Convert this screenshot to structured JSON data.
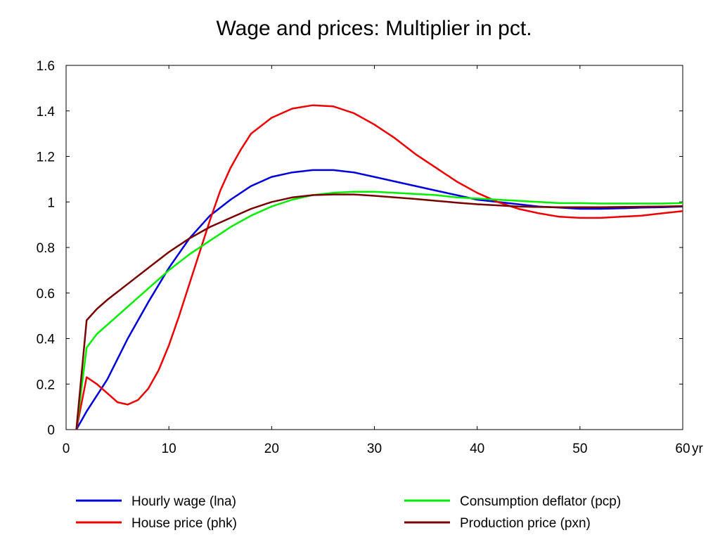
{
  "chart_data": {
    "type": "line",
    "title": "Wage and prices: Multiplier in pct.",
    "xlabel": "",
    "ylabel": "",
    "x_unit_label": "yr",
    "xlim": [
      0,
      60
    ],
    "ylim": [
      0,
      1.6
    ],
    "x_ticks": [
      0,
      10,
      20,
      30,
      40,
      50,
      60
    ],
    "x_tick_labels": [
      "0",
      "10",
      "20",
      "30",
      "40",
      "50",
      "60"
    ],
    "y_ticks": [
      0,
      0.2,
      0.4,
      0.6,
      0.8,
      1,
      1.2,
      1.4,
      1.6
    ],
    "y_tick_labels": [
      "0",
      "0.2",
      "0.4",
      "0.6",
      "0.8",
      "1",
      "1.2",
      "1.4",
      "1.6"
    ],
    "grid": false,
    "legend_position": "bottom",
    "series": [
      {
        "name": "Hourly wage (lna)",
        "color": "#0000dd",
        "points": [
          [
            1,
            0
          ],
          [
            2,
            0.08
          ],
          [
            4,
            0.22
          ],
          [
            6,
            0.4
          ],
          [
            8,
            0.56
          ],
          [
            10,
            0.71
          ],
          [
            12,
            0.84
          ],
          [
            14,
            0.94
          ],
          [
            16,
            1.01
          ],
          [
            18,
            1.07
          ],
          [
            20,
            1.11
          ],
          [
            22,
            1.13
          ],
          [
            24,
            1.14
          ],
          [
            26,
            1.14
          ],
          [
            28,
            1.13
          ],
          [
            30,
            1.11
          ],
          [
            32,
            1.09
          ],
          [
            34,
            1.07
          ],
          [
            36,
            1.05
          ],
          [
            38,
            1.03
          ],
          [
            40,
            1.01
          ],
          [
            42,
            1
          ],
          [
            44,
            0.99
          ],
          [
            46,
            0.98
          ],
          [
            48,
            0.975
          ],
          [
            50,
            0.97
          ],
          [
            52,
            0.97
          ],
          [
            54,
            0.972
          ],
          [
            56,
            0.975
          ],
          [
            58,
            0.977
          ],
          [
            60,
            0.98
          ]
        ]
      },
      {
        "name": "House price (phk)",
        "color": "#ee0000",
        "points": [
          [
            1,
            0
          ],
          [
            2,
            0.23
          ],
          [
            3,
            0.2
          ],
          [
            4,
            0.16
          ],
          [
            5,
            0.12
          ],
          [
            6,
            0.11
          ],
          [
            7,
            0.13
          ],
          [
            8,
            0.18
          ],
          [
            9,
            0.26
          ],
          [
            10,
            0.37
          ],
          [
            11,
            0.5
          ],
          [
            12,
            0.64
          ],
          [
            13,
            0.78
          ],
          [
            14,
            0.92
          ],
          [
            15,
            1.05
          ],
          [
            16,
            1.15
          ],
          [
            17,
            1.23
          ],
          [
            18,
            1.3
          ],
          [
            20,
            1.37
          ],
          [
            22,
            1.41
          ],
          [
            24,
            1.425
          ],
          [
            26,
            1.42
          ],
          [
            28,
            1.39
          ],
          [
            30,
            1.34
          ],
          [
            32,
            1.28
          ],
          [
            34,
            1.21
          ],
          [
            36,
            1.15
          ],
          [
            38,
            1.09
          ],
          [
            40,
            1.04
          ],
          [
            42,
            1
          ],
          [
            44,
            0.97
          ],
          [
            46,
            0.95
          ],
          [
            48,
            0.935
          ],
          [
            50,
            0.93
          ],
          [
            52,
            0.93
          ],
          [
            54,
            0.935
          ],
          [
            56,
            0.94
          ],
          [
            58,
            0.95
          ],
          [
            60,
            0.96
          ]
        ]
      },
      {
        "name": "Consumption deflator (pcp)",
        "color": "#00ee00",
        "points": [
          [
            1,
            0
          ],
          [
            2,
            0.36
          ],
          [
            3,
            0.42
          ],
          [
            4,
            0.46
          ],
          [
            6,
            0.54
          ],
          [
            8,
            0.62
          ],
          [
            10,
            0.7
          ],
          [
            12,
            0.77
          ],
          [
            14,
            0.83
          ],
          [
            16,
            0.89
          ],
          [
            18,
            0.94
          ],
          [
            20,
            0.98
          ],
          [
            22,
            1.01
          ],
          [
            24,
            1.03
          ],
          [
            26,
            1.04
          ],
          [
            28,
            1.045
          ],
          [
            30,
            1.045
          ],
          [
            32,
            1.04
          ],
          [
            34,
            1.035
          ],
          [
            36,
            1.03
          ],
          [
            38,
            1.02
          ],
          [
            40,
            1.015
          ],
          [
            42,
            1.01
          ],
          [
            44,
            1.005
          ],
          [
            46,
            1
          ],
          [
            48,
            0.995
          ],
          [
            50,
            0.995
          ],
          [
            52,
            0.993
          ],
          [
            54,
            0.993
          ],
          [
            56,
            0.993
          ],
          [
            58,
            0.993
          ],
          [
            60,
            0.995
          ]
        ]
      },
      {
        "name": "Production price (pxn)",
        "color": "#7a0000",
        "points": [
          [
            1,
            0
          ],
          [
            2,
            0.48
          ],
          [
            3,
            0.53
          ],
          [
            4,
            0.57
          ],
          [
            6,
            0.64
          ],
          [
            8,
            0.71
          ],
          [
            10,
            0.78
          ],
          [
            12,
            0.84
          ],
          [
            14,
            0.89
          ],
          [
            16,
            0.93
          ],
          [
            18,
            0.97
          ],
          [
            20,
            1
          ],
          [
            22,
            1.02
          ],
          [
            24,
            1.03
          ],
          [
            26,
            1.033
          ],
          [
            28,
            1.033
          ],
          [
            30,
            1.027
          ],
          [
            32,
            1.02
          ],
          [
            34,
            1.013
          ],
          [
            36,
            1.005
          ],
          [
            38,
            0.997
          ],
          [
            40,
            0.99
          ],
          [
            42,
            0.985
          ],
          [
            44,
            0.98
          ],
          [
            46,
            0.978
          ],
          [
            48,
            0.977
          ],
          [
            50,
            0.977
          ],
          [
            52,
            0.977
          ],
          [
            54,
            0.978
          ],
          [
            56,
            0.979
          ],
          [
            58,
            0.98
          ],
          [
            60,
            0.982
          ]
        ]
      }
    ]
  }
}
